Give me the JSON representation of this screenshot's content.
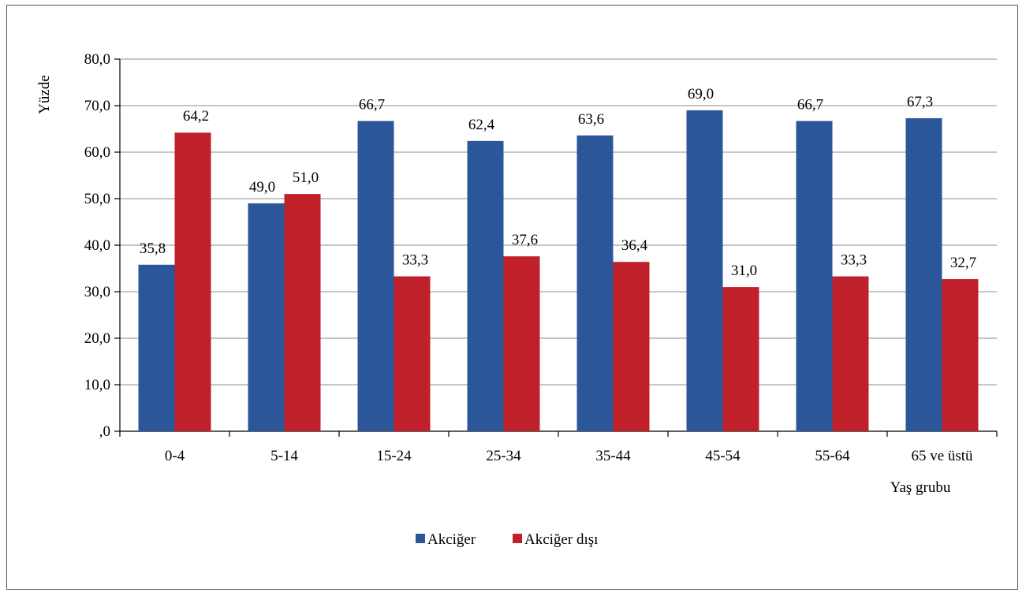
{
  "chart_data": {
    "type": "bar",
    "title": "",
    "xlabel": "Yaş grubu",
    "ylabel": "Yüzde",
    "categories": [
      "0-4",
      "5-14",
      "15-24",
      "25-34",
      "35-44",
      "45-54",
      "55-64",
      "65 ve üstü"
    ],
    "series": [
      {
        "name": "Akciğer",
        "color": "#2B579A",
        "values": [
          35.8,
          49.0,
          66.7,
          62.4,
          63.6,
          69.0,
          66.7,
          67.3
        ],
        "labels": [
          "35,8",
          "49,0",
          "66,7",
          "62,4",
          "63,6",
          "69,0",
          "66,7",
          "67,3"
        ]
      },
      {
        "name": "Akciğer dışı",
        "color": "#C0202A",
        "values": [
          64.2,
          51.0,
          33.3,
          37.6,
          36.4,
          31.0,
          33.3,
          32.7
        ],
        "labels": [
          "64,2",
          "51,0",
          "33,3",
          "37,6",
          "36,4",
          "31,0",
          "33,3",
          "32,7"
        ]
      }
    ],
    "ylim": [
      0,
      80
    ],
    "yticks": [
      0,
      10,
      20,
      30,
      40,
      50,
      60,
      70,
      80
    ],
    "ytick_labels": [
      ",0",
      "10,0",
      "20,0",
      "30,0",
      "40,0",
      "50,0",
      "60,0",
      "70,0",
      "80,0"
    ],
    "grid": true,
    "legend": "bottom"
  }
}
